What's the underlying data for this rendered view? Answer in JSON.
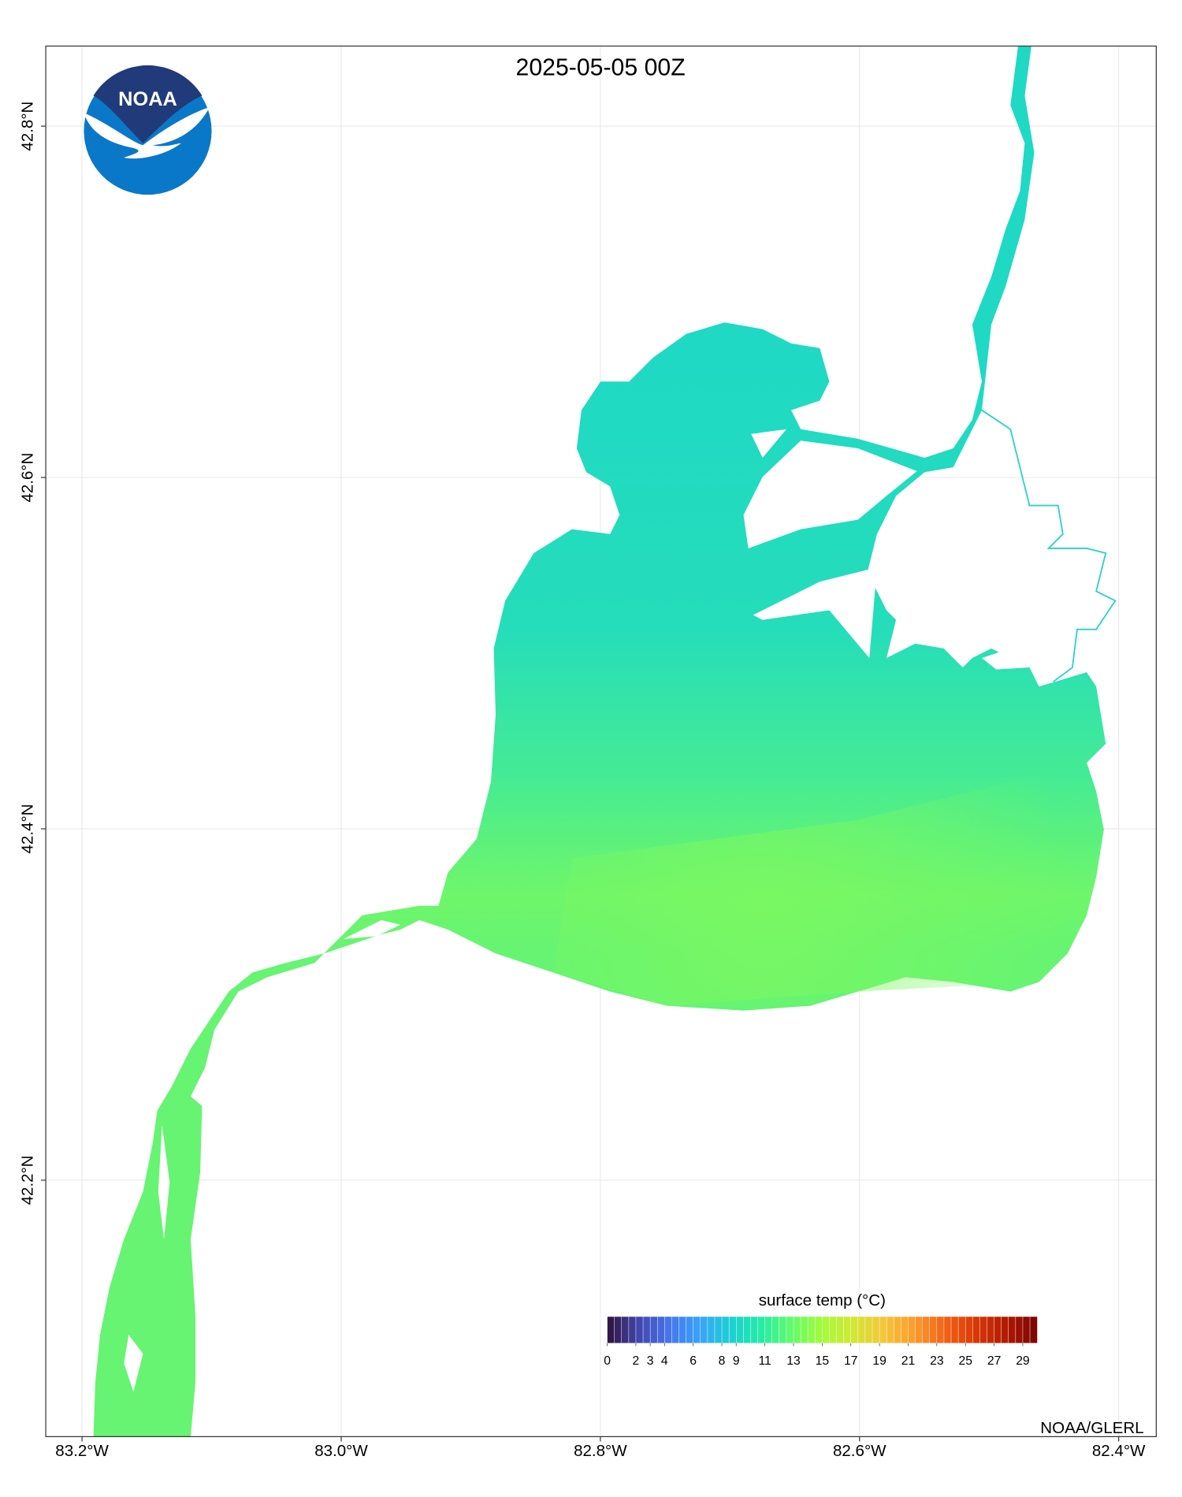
{
  "chart_data": {
    "type": "map",
    "title": "2025-05-05 00Z",
    "logo_text": "NOAA",
    "credit": "NOAA/GLERL",
    "xlim": [
      -83.228,
      -82.371
    ],
    "ylim": [
      42.054,
      42.8456
    ],
    "xticks": [
      {
        "value": -83.2,
        "label": "83.2°W"
      },
      {
        "value": -83.0,
        "label": "83.0°W"
      },
      {
        "value": -82.8,
        "label": "82.8°W"
      },
      {
        "value": -82.6,
        "label": "82.6°W"
      },
      {
        "value": -82.4,
        "label": "82.4°W"
      }
    ],
    "yticks": [
      {
        "value": 42.2,
        "label": "42.2°N"
      },
      {
        "value": 42.4,
        "label": "42.4°N"
      },
      {
        "value": 42.6,
        "label": "42.6°N"
      },
      {
        "value": 42.8,
        "label": "42.8°N"
      }
    ],
    "grid": true,
    "colorbar": {
      "title": "surface temp (°C)",
      "lim": [
        0,
        30
      ],
      "ticks": [
        0,
        2,
        3,
        4,
        6,
        8,
        9,
        11,
        13,
        15,
        17,
        19,
        21,
        23,
        25,
        27,
        29
      ],
      "colors": [
        "#30123b",
        "#4145ab",
        "#4675ed",
        "#39a2fc",
        "#1bcfd4",
        "#24eca6",
        "#61fc6c",
        "#a4fc3b",
        "#d1e834",
        "#f3c63a",
        "#fe9b2d",
        "#f36315",
        "#d93806",
        "#b11901",
        "#7a0402"
      ]
    }
  }
}
